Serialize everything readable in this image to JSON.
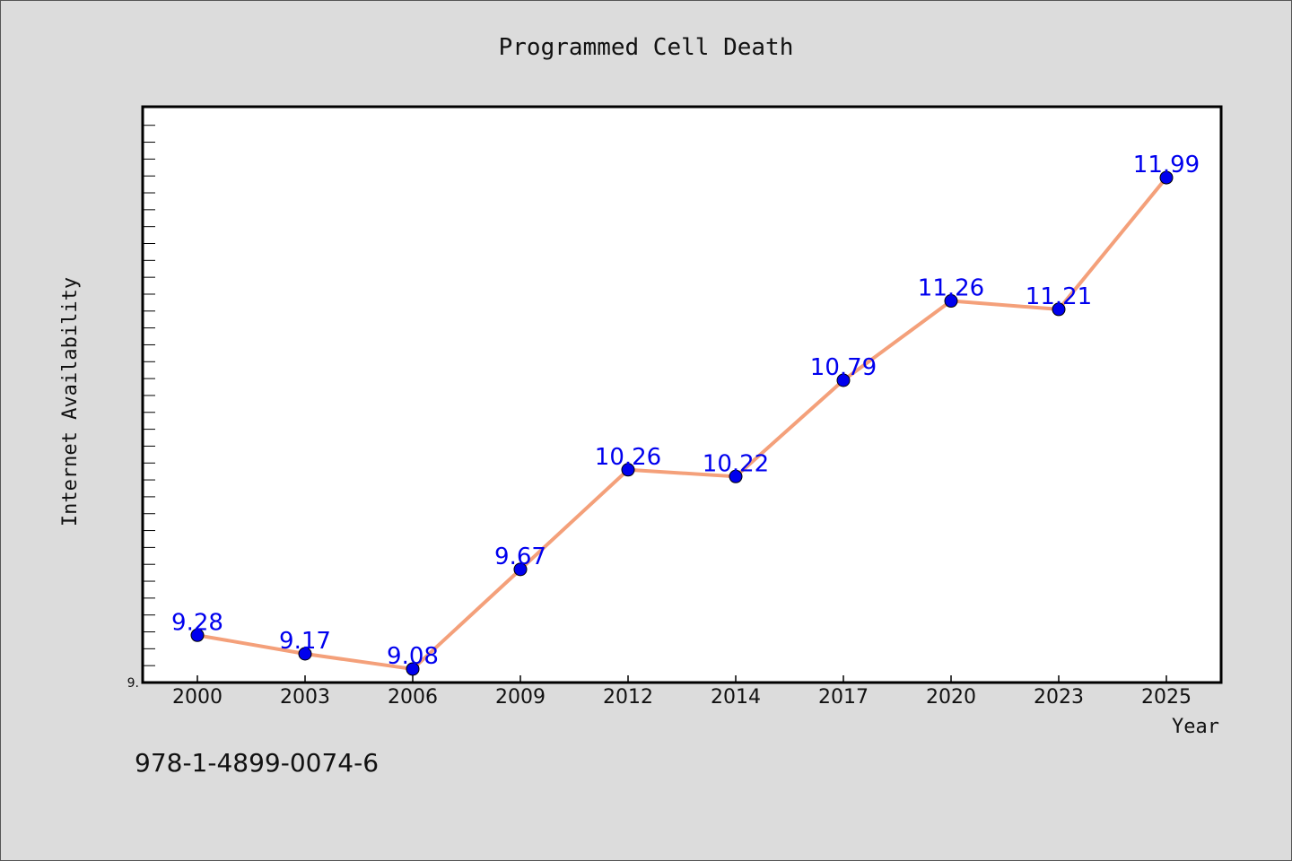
{
  "chart_data": {
    "type": "line",
    "title": "Programmed Cell Death",
    "xlabel": "Year",
    "ylabel": "Internet Availability",
    "categories": [
      "2000",
      "2003",
      "2006",
      "2009",
      "2012",
      "2014",
      "2017",
      "2020",
      "2023",
      "2025"
    ],
    "series": [
      {
        "values": [
          9.28,
          9.17,
          9.08,
          9.67,
          10.26,
          10.22,
          10.79,
          11.26,
          11.21,
          11.99
        ],
        "labels": [
          "9.28",
          "9.17",
          "9.08",
          "9.67",
          "10.26",
          "10.22",
          "10.79",
          "11.26",
          "11.21",
          "11.99"
        ]
      }
    ],
    "ylim": [
      9.0,
      12.41
    ],
    "ytick_labels": [
      {
        "value": 9.0,
        "label": "9."
      }
    ],
    "grid": false,
    "colors": {
      "line": "#f4a07a",
      "marker": "#0000ee",
      "data_label": "#0000ee",
      "plot_background": "#ffffff",
      "figure_background": "#dcdcdc"
    }
  },
  "footer": {
    "isbn": "978-1-4899-0074-6"
  }
}
